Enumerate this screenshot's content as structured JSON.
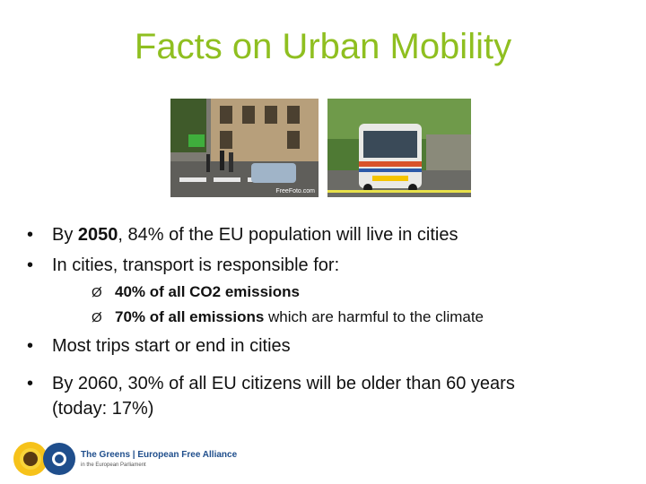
{
  "title": "Facts on Urban Mobility",
  "photos": [
    {
      "name": "street-photo",
      "caption": "FreeFoto.com"
    },
    {
      "name": "bus-photo",
      "caption": ""
    }
  ],
  "bullets": [
    {
      "pre": "By ",
      "bold": "2050",
      "post": ", 84% of the EU population will live in cities"
    },
    {
      "text": "In cities, transport is responsible for:"
    },
    {
      "text": "Most trips start or end in cities"
    },
    {
      "line1": "By 2060, 30% of all EU citizens will be older than 60 years",
      "line2": "(today: 17%)"
    }
  ],
  "sub_bullets": [
    {
      "bold": "40% of all CO2 emissions",
      "post": ""
    },
    {
      "bold": "70% of all emissions",
      "post": " which are harmful to the climate"
    }
  ],
  "bullet_glyph": "•",
  "sub_glyph": "Ø",
  "logo": {
    "line1": "The Greens | European Free Alliance",
    "line2": "in the European Parliament"
  },
  "colors": {
    "title": "#8fbf20",
    "logo_text": "#1f4e8c"
  }
}
